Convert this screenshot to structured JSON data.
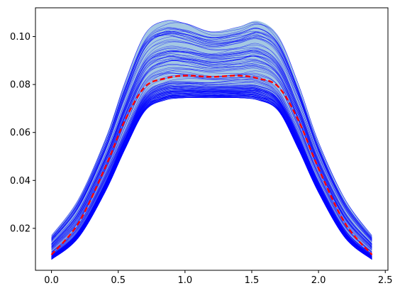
{
  "chart_data": {
    "type": "line",
    "title": "",
    "xlabel": "",
    "ylabel": "",
    "xlim": [
      -0.12,
      2.52
    ],
    "ylim": [
      0.0025,
      0.112
    ],
    "x_ticks": [
      0.0,
      0.5,
      1.0,
      1.5,
      2.0,
      2.5
    ],
    "x_tick_labels": [
      "0.0",
      "0.5",
      "1.0",
      "1.5",
      "2.0",
      "2.5"
    ],
    "y_ticks": [
      0.02,
      0.04,
      0.06,
      0.08,
      0.1
    ],
    "y_tick_labels": [
      "0.02",
      "0.04",
      "0.06",
      "0.08",
      "0.10"
    ],
    "grid": false,
    "legend": "none",
    "x": [
      0.0,
      0.2,
      0.4,
      0.55,
      0.7,
      0.85,
      1.0,
      1.2,
      1.4,
      1.55,
      1.7,
      1.85,
      2.0,
      2.2,
      2.4
    ],
    "series": [
      {
        "role": "band-upper",
        "color": "#a4c8e2",
        "values": [
          0.017,
          0.032,
          0.057,
          0.081,
          0.101,
          0.1065,
          0.1055,
          0.102,
          0.104,
          0.1065,
          0.1,
          0.08,
          0.056,
          0.032,
          0.017
        ]
      },
      {
        "role": "band-lower",
        "color": "#a4c8e2",
        "values": [
          0.007,
          0.016,
          0.035,
          0.053,
          0.069,
          0.0735,
          0.0745,
          0.0745,
          0.0745,
          0.0735,
          0.069,
          0.053,
          0.035,
          0.016,
          0.007
        ]
      },
      {
        "role": "mean",
        "color": "#ff0000",
        "style": "dashed",
        "values": [
          0.009,
          0.022,
          0.045,
          0.065,
          0.079,
          0.0825,
          0.0837,
          0.0832,
          0.0837,
          0.0825,
          0.079,
          0.065,
          0.045,
          0.022,
          0.009
        ]
      }
    ],
    "sample_lines": {
      "count": 90,
      "color": "#0000ff",
      "note_scale_range": [
        0.89,
        1.27
      ]
    }
  }
}
